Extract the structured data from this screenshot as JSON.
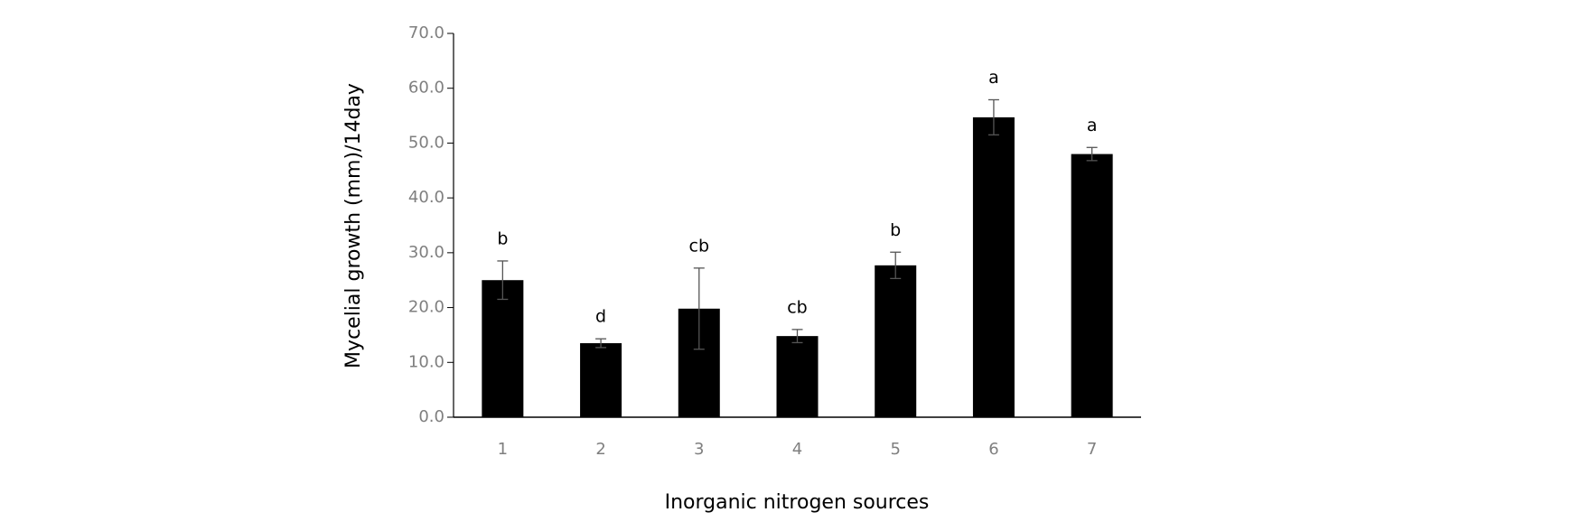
{
  "chart_data": {
    "type": "bar",
    "x_label": "Inorganic nitrogen sources",
    "y_label": "Mycelial growth (mm)/14day",
    "categories": [
      "1",
      "2",
      "3",
      "4",
      "5",
      "6",
      "7"
    ],
    "values": [
      25.0,
      13.5,
      19.8,
      14.8,
      27.7,
      54.7,
      48.0
    ],
    "errors": [
      3.5,
      0.8,
      7.4,
      1.2,
      2.4,
      3.2,
      1.2
    ],
    "letters": [
      "b",
      "d",
      "cb",
      "cb",
      "b",
      "a",
      "a"
    ],
    "color": "#000000",
    "ylim": [
      0,
      70
    ],
    "yticks": [
      {
        "value": 0,
        "label": "0.0"
      },
      {
        "value": 10,
        "label": "10.0"
      },
      {
        "value": 20,
        "label": "20.0"
      },
      {
        "value": 30,
        "label": "30.0"
      },
      {
        "value": 40,
        "label": "40.0"
      },
      {
        "value": 50,
        "label": "50.0"
      },
      {
        "value": 60,
        "label": "60.0"
      },
      {
        "value": 70,
        "label": "70.0"
      }
    ]
  }
}
